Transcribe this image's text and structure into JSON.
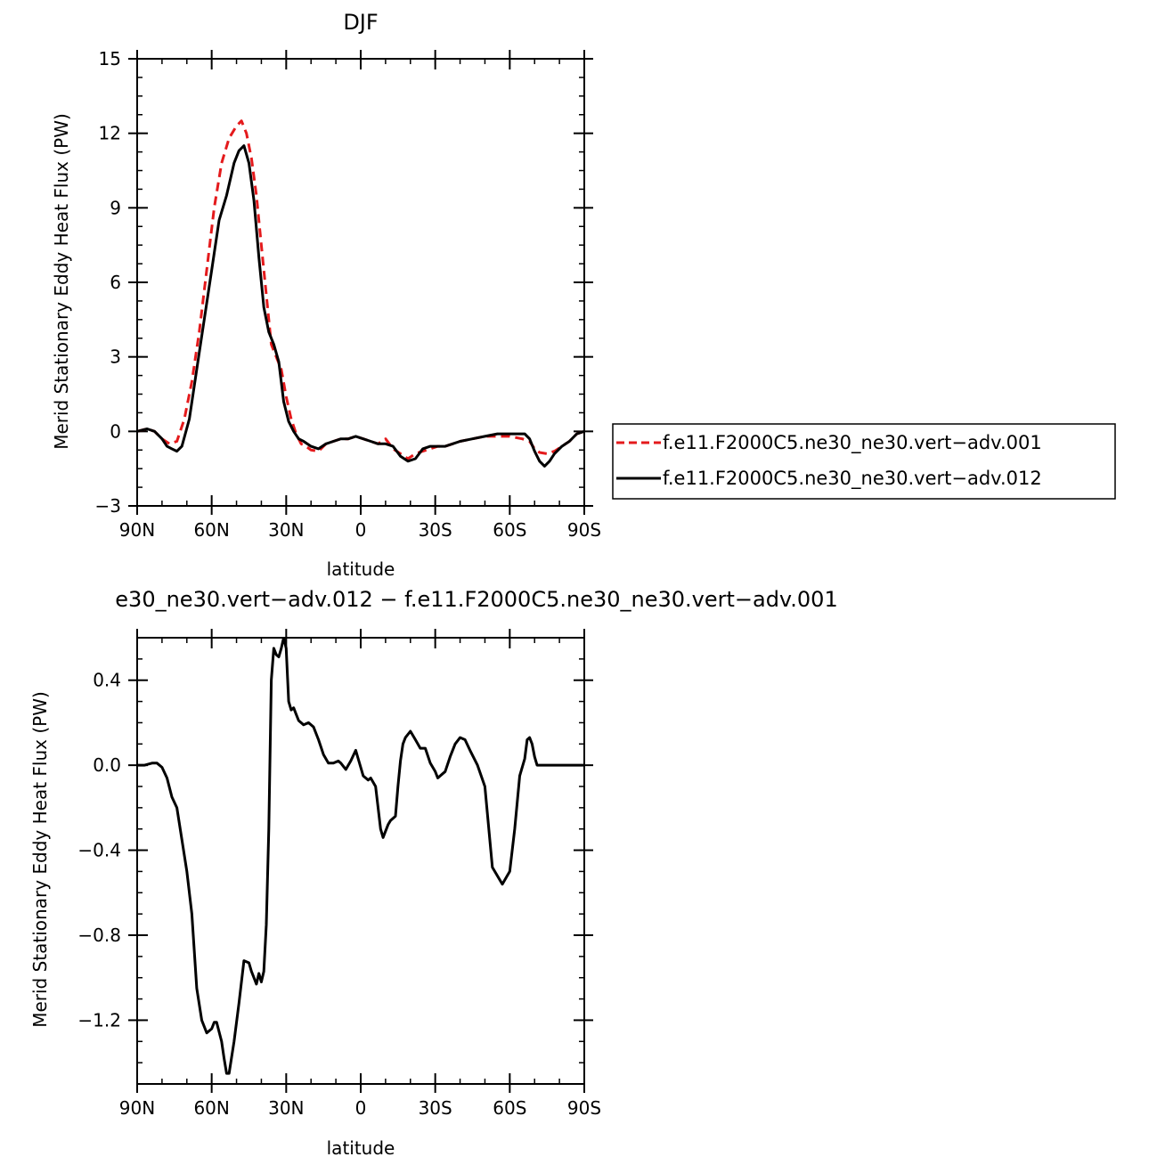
{
  "chart_data": [
    {
      "type": "line",
      "title": "DJF",
      "xlabel": "latitude",
      "ylabel": "Merid Stationary Eddy Heat Flux (PW)",
      "xlim": [
        90,
        -90
      ],
      "ylim": [
        -3,
        15
      ],
      "x_ticks": [
        {
          "value": 90,
          "label": "90N"
        },
        {
          "value": 60,
          "label": "60N"
        },
        {
          "value": 30,
          "label": "30N"
        },
        {
          "value": 0,
          "label": "0"
        },
        {
          "value": -30,
          "label": "30S"
        },
        {
          "value": -60,
          "label": "60S"
        },
        {
          "value": -90,
          "label": "90S"
        }
      ],
      "y_ticks": [
        {
          "value": 15,
          "label": "15"
        },
        {
          "value": 12,
          "label": "12"
        },
        {
          "value": 9,
          "label": "9"
        },
        {
          "value": 6,
          "label": "6"
        },
        {
          "value": 3,
          "label": "3"
        },
        {
          "value": 0,
          "label": "0"
        },
        {
          "value": -3,
          "label": "−3"
        }
      ],
      "legend_position": "right",
      "series": [
        {
          "name": "f.e11.F2000C5.ne30_ne30.vert−adv.001",
          "color": "#e41a1c",
          "style": "dashed",
          "x": [
            90,
            86,
            83,
            80,
            77,
            74,
            71,
            68,
            65,
            62,
            59,
            56,
            53,
            50,
            48,
            46,
            44,
            42,
            40,
            38,
            36,
            34,
            32,
            30,
            28,
            26,
            24,
            22,
            20,
            17,
            14,
            11,
            8,
            5,
            2,
            -1,
            -4,
            -7,
            -10,
            -13,
            -16,
            -19,
            -22,
            -25,
            -28,
            -31,
            -34,
            -37,
            -40,
            -45,
            -50,
            -55,
            -60,
            -65,
            -68,
            -70,
            -72,
            -75,
            -78,
            -81,
            -84,
            -87,
            -90
          ],
          "y": [
            0,
            0.1,
            0,
            -0.3,
            -0.5,
            -0.4,
            0.5,
            2,
            4,
            6.5,
            9,
            10.8,
            11.8,
            12.3,
            12.5,
            12,
            11,
            9.5,
            7.5,
            5.5,
            3.5,
            3,
            2.5,
            1.4,
            0.5,
            -0.1,
            -0.5,
            -0.6,
            -0.75,
            -0.8,
            -0.5,
            -0.4,
            -0.3,
            -0.3,
            -0.2,
            -0.3,
            -0.4,
            -0.5,
            -0.3,
            -0.7,
            -0.9,
            -1.1,
            -0.9,
            -0.8,
            -0.7,
            -0.6,
            -0.6,
            -0.5,
            -0.4,
            -0.3,
            -0.2,
            -0.2,
            -0.2,
            -0.3,
            -0.4,
            -0.7,
            -0.85,
            -0.9,
            -0.8,
            -0.6,
            -0.4,
            -0.1,
            0
          ]
        },
        {
          "name": "f.e11.F2000C5.ne30_ne30.vert−adv.012",
          "color": "#000000",
          "style": "solid",
          "x": [
            90,
            86,
            83,
            80,
            78,
            76,
            74,
            72,
            69,
            66,
            63,
            60,
            57,
            54,
            51,
            49,
            47,
            45,
            43,
            41,
            39,
            37,
            35,
            33,
            31,
            29,
            27,
            25,
            23,
            20,
            17,
            14,
            11,
            8,
            5,
            2,
            -1,
            -4,
            -7,
            -10,
            -13,
            -16,
            -19,
            -22,
            -25,
            -28,
            -31,
            -34,
            -37,
            -40,
            -45,
            -50,
            -55,
            -60,
            -63,
            -66,
            -68,
            -70,
            -72,
            -74,
            -76,
            -78,
            -81,
            -84,
            -87,
            -90
          ],
          "y": [
            0,
            0.1,
            0,
            -0.3,
            -0.6,
            -0.7,
            -0.8,
            -0.6,
            0.5,
            2.5,
            4.5,
            6.5,
            8.5,
            9.5,
            10.8,
            11.3,
            11.5,
            10.8,
            9.3,
            7,
            5,
            4,
            3.5,
            2.8,
            1.2,
            0.4,
            0,
            -0.3,
            -0.4,
            -0.6,
            -0.7,
            -0.5,
            -0.4,
            -0.3,
            -0.3,
            -0.2,
            -0.3,
            -0.4,
            -0.5,
            -0.5,
            -0.6,
            -1,
            -1.2,
            -1.1,
            -0.7,
            -0.6,
            -0.6,
            -0.6,
            -0.5,
            -0.4,
            -0.3,
            -0.2,
            -0.1,
            -0.1,
            -0.1,
            -0.1,
            -0.3,
            -0.8,
            -1.2,
            -1.4,
            -1.2,
            -0.9,
            -0.6,
            -0.4,
            -0.1,
            0
          ]
        }
      ]
    },
    {
      "type": "line",
      "title": "e30_ne30.vert−adv.012 − f.e11.F2000C5.ne30_ne30.vert−adv.001",
      "xlabel": "latitude",
      "ylabel": "Merid Stationary Eddy Heat Flux (PW)",
      "xlim": [
        90,
        -90
      ],
      "ylim": [
        -1.5,
        0.6
      ],
      "x_ticks": [
        {
          "value": 90,
          "label": "90N"
        },
        {
          "value": 60,
          "label": "60N"
        },
        {
          "value": 30,
          "label": "30N"
        },
        {
          "value": 0,
          "label": "0"
        },
        {
          "value": -30,
          "label": "30S"
        },
        {
          "value": -60,
          "label": "60S"
        },
        {
          "value": -90,
          "label": "90S"
        }
      ],
      "y_ticks": [
        {
          "value": 0.4,
          "label": "0.4"
        },
        {
          "value": 0,
          "label": "0.0"
        },
        {
          "value": -0.4,
          "label": "−0.4"
        },
        {
          "value": -0.8,
          "label": "−0.8"
        },
        {
          "value": -1.2,
          "label": "−1.2"
        }
      ],
      "series": [
        {
          "name": "",
          "color": "#000000",
          "style": "solid",
          "x": [
            90,
            87,
            84,
            82,
            80,
            78,
            76,
            74,
            72,
            70,
            68,
            66,
            64,
            62,
            60,
            59,
            58,
            56,
            55,
            54,
            53,
            51,
            49,
            47,
            45,
            44,
            43,
            42,
            41,
            40,
            39,
            38,
            37,
            36,
            35,
            34,
            33,
            32,
            31,
            30,
            29,
            28,
            27,
            26,
            25,
            23,
            21,
            19,
            17,
            15,
            13,
            11,
            9,
            8,
            6,
            4,
            2,
            1,
            -1,
            -3,
            -4,
            -6,
            -8,
            -9,
            -11,
            -12,
            -14,
            -15,
            -16,
            -17,
            -18,
            -20,
            -22,
            -24,
            -26,
            -28,
            -30,
            -31,
            -32,
            -33,
            -34,
            -36,
            -38,
            -40,
            -42,
            -44,
            -47,
            -50,
            -53,
            -57,
            -60,
            -62,
            -64,
            -66,
            -67,
            -68,
            -69,
            -70,
            -71,
            -72,
            -73,
            -75,
            -77,
            -79,
            -80,
            -82,
            -84,
            -86,
            -88,
            -90
          ],
          "y": [
            0,
            0,
            0.01,
            0.01,
            -0.01,
            -0.06,
            -0.15,
            -0.2,
            -0.35,
            -0.5,
            -0.7,
            -1.05,
            -1.2,
            -1.26,
            -1.24,
            -1.21,
            -1.21,
            -1.3,
            -1.38,
            -1.45,
            -1.45,
            -1.3,
            -1.12,
            -0.92,
            -0.93,
            -0.97,
            -1.0,
            -1.03,
            -0.98,
            -1.02,
            -0.97,
            -0.75,
            -0.3,
            0.4,
            0.55,
            0.52,
            0.51,
            0.55,
            0.6,
            0.55,
            0.3,
            0.26,
            0.27,
            0.24,
            0.21,
            0.19,
            0.2,
            0.18,
            0.12,
            0.05,
            0.01,
            0.01,
            0.02,
            0.01,
            -0.02,
            0.02,
            0.07,
            0.03,
            -0.05,
            -0.07,
            -0.06,
            -0.1,
            -0.3,
            -0.34,
            -0.28,
            -0.26,
            -0.24,
            -0.1,
            0.02,
            0.1,
            0.13,
            0.16,
            0.12,
            0.08,
            0.08,
            0.01,
            -0.03,
            -0.06,
            -0.05,
            -0.04,
            -0.03,
            0.04,
            0.1,
            0.13,
            0.12,
            0.07,
            0.0,
            -0.1,
            -0.48,
            -0.56,
            -0.5,
            -0.3,
            -0.05,
            0.03,
            0.12,
            0.13,
            0.1,
            0.04,
            0.0,
            0.0,
            0.0,
            0.0,
            0.0,
            0.0,
            0.0,
            0.0,
            0.0,
            0.0,
            0.0,
            0.0
          ]
        }
      ]
    }
  ]
}
